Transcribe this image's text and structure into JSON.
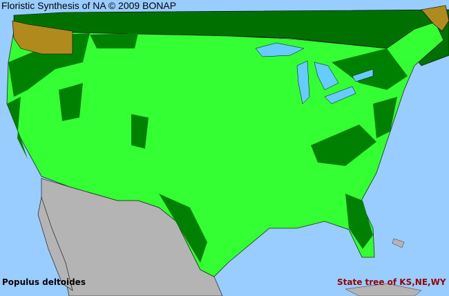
{
  "header": {
    "title": "Floristic Synthesis of NA © 2009 BONAP"
  },
  "map": {
    "species": "Populus deltoides",
    "note": "State tree of KS,NE,WY",
    "colors": {
      "ocean": "#99ccff",
      "present_county": "#33ff33",
      "present_state": "#008000",
      "canada": "#006600",
      "mexico": "#b4b4b4",
      "non_native_or_rare": "#b08a1c",
      "lakes": "#66ccff"
    }
  }
}
